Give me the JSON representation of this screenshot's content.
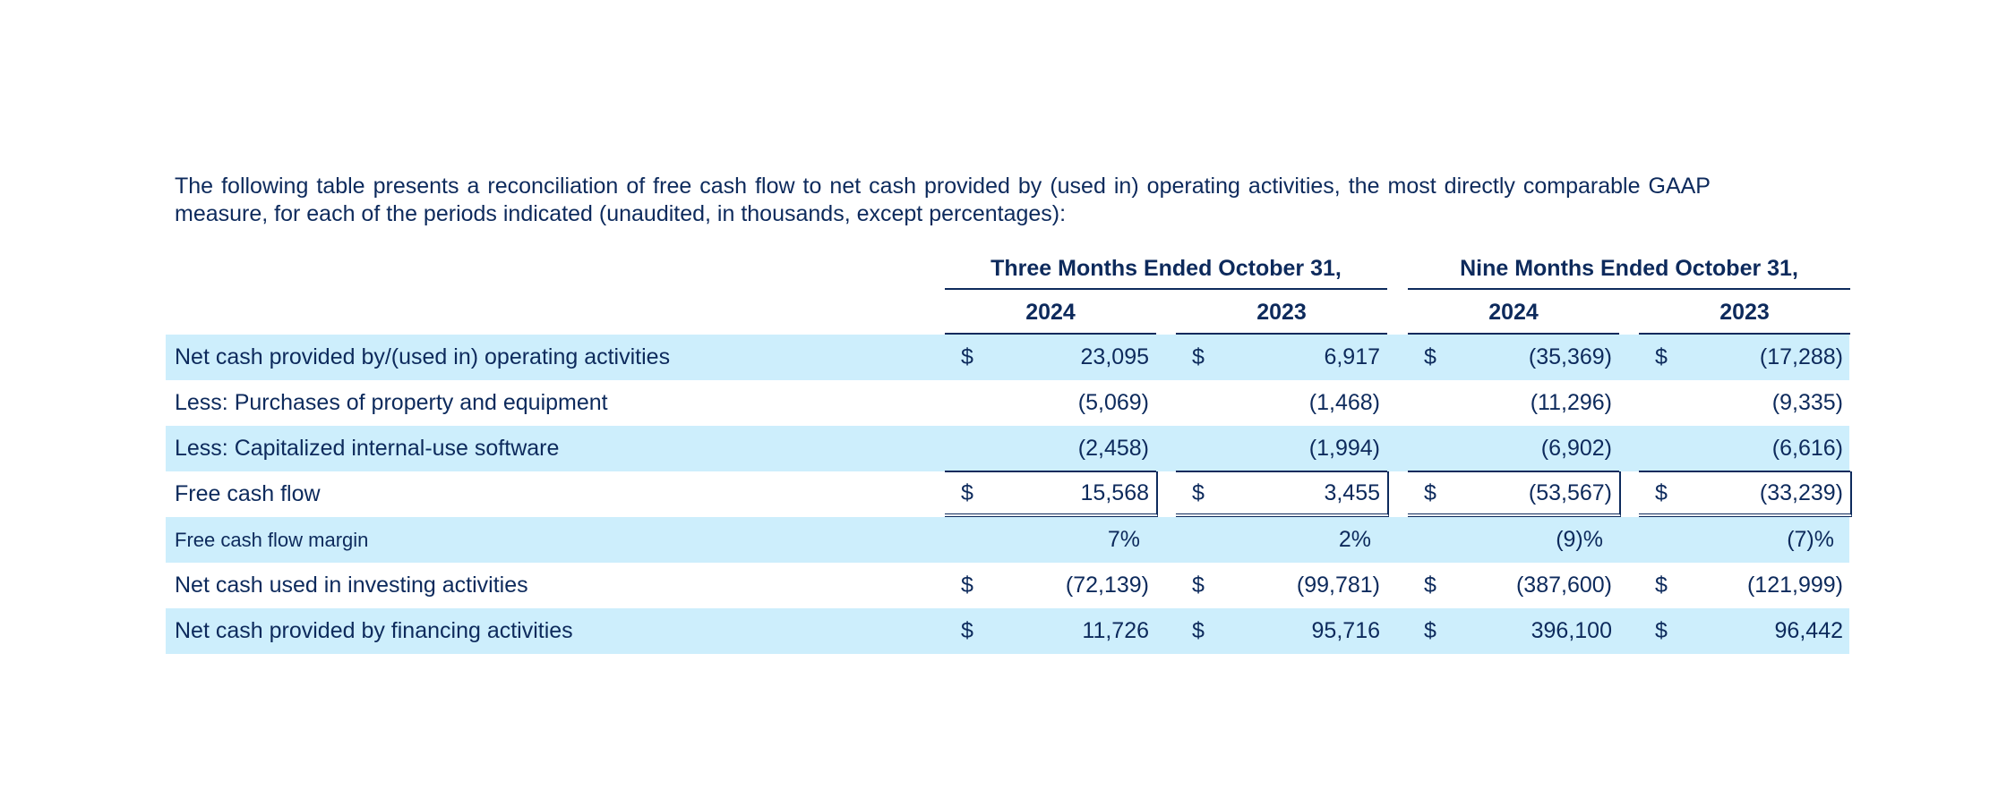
{
  "intro_text": "The following table presents a reconciliation of free cash flow to net cash provided by (used in) operating activities, the most directly comparable GAAP measure, for each of the periods indicated (unaudited, in thousands, except percentages):",
  "headers": {
    "group_three_months": "Three Months Ended October 31,",
    "group_nine_months": "Nine Months Ended October 31,",
    "years": [
      "2024",
      "2023",
      "2024",
      "2023"
    ]
  },
  "rows": [
    {
      "label": "Net cash provided by/(used in) operating activities",
      "cells": [
        {
          "cur": "$",
          "val": "23,095"
        },
        {
          "cur": "$",
          "val": "6,917"
        },
        {
          "cur": "$",
          "val": "(35,369)"
        },
        {
          "cur": "$",
          "val": "(17,288)"
        }
      ]
    },
    {
      "label": "Less: Purchases of property and equipment",
      "cells": [
        {
          "cur": "",
          "val": "(5,069)"
        },
        {
          "cur": "",
          "val": "(1,468)"
        },
        {
          "cur": "",
          "val": "(11,296)"
        },
        {
          "cur": "",
          "val": "(9,335)"
        }
      ]
    },
    {
      "label": "Less: Capitalized internal-use software",
      "cells": [
        {
          "cur": "",
          "val": "(2,458)"
        },
        {
          "cur": "",
          "val": "(1,994)"
        },
        {
          "cur": "",
          "val": "(6,902)"
        },
        {
          "cur": "",
          "val": "(6,616)"
        }
      ]
    },
    {
      "label": "Free cash flow",
      "cells": [
        {
          "cur": "$",
          "val": "15,568"
        },
        {
          "cur": "$",
          "val": "3,455"
        },
        {
          "cur": "$",
          "val": "(53,567)"
        },
        {
          "cur": "$",
          "val": "(33,239)"
        }
      ]
    },
    {
      "label": "Free cash flow margin",
      "cells": [
        {
          "cur": "",
          "val": "7%"
        },
        {
          "cur": "",
          "val": "2%"
        },
        {
          "cur": "",
          "val": "(9)%"
        },
        {
          "cur": "",
          "val": "(7)%"
        }
      ]
    },
    {
      "label": "Net cash used in investing activities",
      "cells": [
        {
          "cur": "$",
          "val": "(72,139)"
        },
        {
          "cur": "$",
          "val": "(99,781)"
        },
        {
          "cur": "$",
          "val": "(387,600)"
        },
        {
          "cur": "$",
          "val": "(121,999)"
        }
      ]
    },
    {
      "label": "Net cash provided by financing activities",
      "cells": [
        {
          "cur": "$",
          "val": "11,726"
        },
        {
          "cur": "$",
          "val": "95,716"
        },
        {
          "cur": "$",
          "val": "396,100"
        },
        {
          "cur": "$",
          "val": "96,442"
        }
      ]
    }
  ],
  "colors": {
    "text": "#0d2a5c",
    "row_shade": "#cdeefc",
    "background": "#ffffff"
  }
}
